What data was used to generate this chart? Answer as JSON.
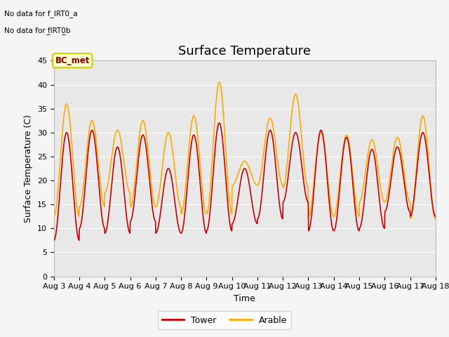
{
  "title": "Surface Temperature",
  "ylabel": "Surface Temperature (C)",
  "xlabel": "Time",
  "ylim": [
    0,
    45
  ],
  "x_ticks": [
    3,
    4,
    5,
    6,
    7,
    8,
    9,
    10,
    11,
    12,
    13,
    14,
    15,
    16,
    17,
    18
  ],
  "x_tick_labels": [
    "Aug 3",
    "Aug 4",
    "Aug 5",
    "Aug 6",
    "Aug 7",
    "Aug 8",
    "Aug 9",
    "Aug 10",
    "Aug 11",
    "Aug 12",
    "Aug 13",
    "Aug 14",
    "Aug 15",
    "Aug 16",
    "Aug 17",
    "Aug 18"
  ],
  "tower_color": "#cc0000",
  "arable_color": "#ffaa00",
  "bg_color": "#e8e8e8",
  "fig_bg_color": "#f5f5f5",
  "no_data_text1": "No data for f_IRT0_a",
  "no_data_text2": "No data for f̲IRT0̲b",
  "bc_met_label": "BC_met",
  "legend_tower": "Tower",
  "legend_arable": "Arable",
  "title_fontsize": 13,
  "label_fontsize": 9,
  "tick_fontsize": 8,
  "t_peaks": [
    30,
    30.5,
    27,
    29.5,
    22.5,
    29.5,
    32,
    22.5,
    30.5,
    30,
    30.5,
    29,
    26.5,
    27,
    30
  ],
  "t_troughs": [
    7.5,
    10,
    9,
    11.5,
    9,
    9,
    9.5,
    11,
    12,
    15.5,
    9.5,
    9.5,
    10,
    13.5,
    12.5
  ],
  "a_peaks": [
    36,
    32.5,
    30.5,
    32.5,
    30,
    33.5,
    40.5,
    24,
    33,
    38,
    30,
    29.5,
    28.5,
    29,
    33.5
  ],
  "a_troughs": [
    12.5,
    14.5,
    17.5,
    14.5,
    14.5,
    13,
    13,
    19,
    19,
    18.5,
    12.5,
    12.5,
    15.5,
    15.5,
    12
  ]
}
